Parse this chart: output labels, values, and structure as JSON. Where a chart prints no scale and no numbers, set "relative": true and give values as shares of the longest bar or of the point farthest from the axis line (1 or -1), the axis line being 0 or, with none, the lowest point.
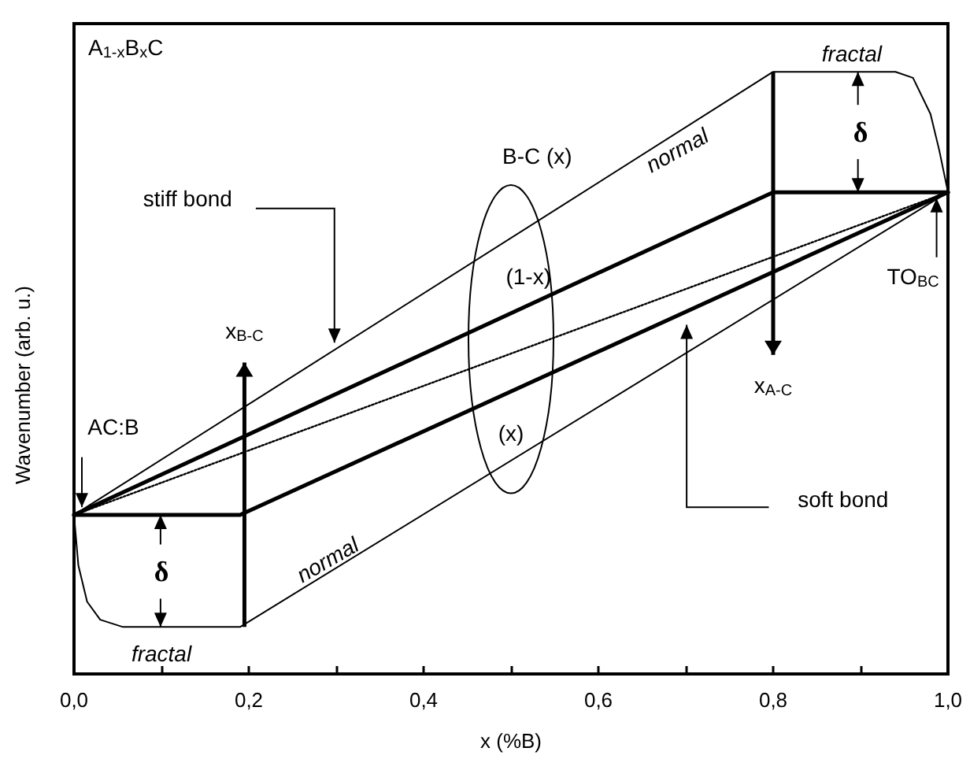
{
  "chart_data": {
    "type": "line",
    "relative": true,
    "xlabel": "x (%B)",
    "ylabel": "Wavenumber (arb. u.)",
    "xlim": [
      0,
      1
    ],
    "xticks": [
      {
        "value": 0,
        "label": "0,0"
      },
      {
        "value": 0.1,
        "label": null
      },
      {
        "value": 0.2,
        "label": "0,2"
      },
      {
        "value": 0.3,
        "label": null
      },
      {
        "value": 0.4,
        "label": "0,4"
      },
      {
        "value": 0.5,
        "label": null
      },
      {
        "value": 0.6,
        "label": "0,6"
      },
      {
        "value": 0.7,
        "label": null
      },
      {
        "value": 0.8,
        "label": "0,8"
      },
      {
        "value": 0.9,
        "label": null
      },
      {
        "value": 1,
        "label": "1,0"
      }
    ],
    "tick_labels": "x",
    "grid": false,
    "marker": "none",
    "series": [
      {
        "color": "#000000",
        "x": [
          0,
          0.8,
          1
        ],
        "values": [
          0.264,
          0.8,
          0.8
        ]
      },
      {
        "color": "#000000",
        "x": [
          0,
          0.19,
          1
        ],
        "values": [
          0.264,
          0.264,
          0.8
        ]
      },
      {
        "color": "#000000",
        "line_style": "dotted",
        "x": [
          0,
          1
        ],
        "values": [
          0.264,
          0.8
        ]
      },
      {
        "color": "#000000",
        "x": [
          0,
          0.8,
          0.94,
          0.96,
          0.98,
          0.99,
          1
        ],
        "values": [
          0.264,
          1,
          1,
          0.99,
          0.93,
          0.87,
          0.8
        ]
      },
      {
        "color": "#000000",
        "x": [
          0,
          0.005,
          0.015,
          0.03,
          0.056,
          0.19,
          1
        ],
        "values": [
          0.264,
          0.18,
          0.12,
          0.09,
          0.078,
          0.078,
          0.8
        ]
      }
    ],
    "annotations": [
      "A$_{1-x}$B$_{x}$C",
      "B-C (x)",
      "(1-x)",
      "(x)",
      "stiff bond",
      "soft bond",
      "normal",
      "normal",
      "fractal",
      "fractal",
      "δ",
      "δ",
      "x$_{B-C}$",
      "x$_{A-C}$",
      "AC:B",
      "TO$_{BC}$"
    ]
  }
}
